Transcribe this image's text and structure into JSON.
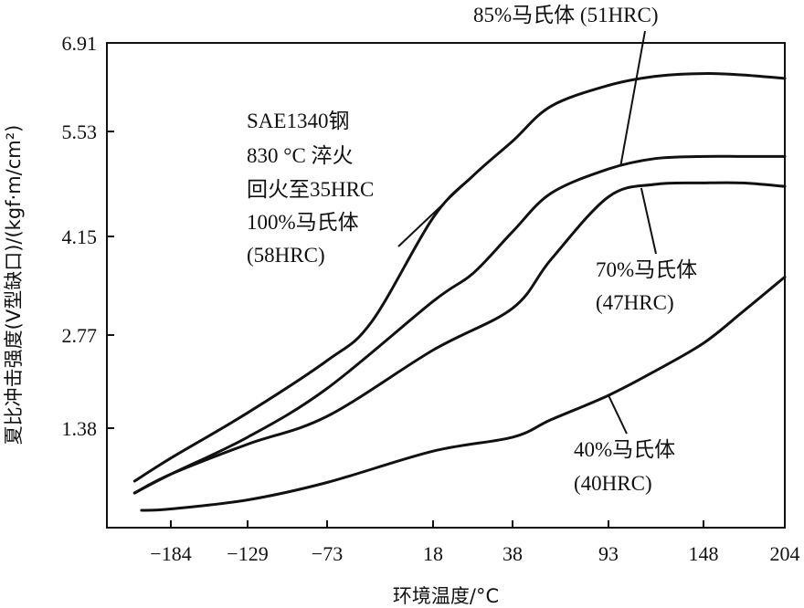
{
  "chart_data": {
    "type": "line",
    "xlabel": "环境温度/°C",
    "ylabel": "夏比冲击强度(V型缺口)/(kgf·m/cm²)",
    "x_ticks": [
      "−184",
      "−129",
      "−73",
      "18",
      "38",
      "93",
      "148",
      "204"
    ],
    "y_ticks": [
      "1.38",
      "2.77",
      "4.15",
      "5.53",
      "6.91"
    ],
    "x_tick_values": [
      -184,
      -129,
      -73,
      18,
      38,
      93,
      148,
      204
    ],
    "y_tick_values": [
      1.38,
      2.77,
      4.15,
      5.53,
      6.91
    ],
    "ylim": [
      -0.1,
      6.91
    ],
    "note": [
      "SAE1340钢",
      "830 °C 淬火",
      "回火至35HRC"
    ],
    "series": [
      {
        "name": "100%马氏体 (58HRC)",
        "label_lines": [
          "100%马氏体",
          "(58HRC)"
        ],
        "x": [
          -210,
          -184,
          -129,
          -73,
          -35,
          18,
          28,
          38,
          60,
          93,
          120,
          148,
          175,
          204
        ],
        "y": [
          0.62,
          0.95,
          1.6,
          2.35,
          2.9,
          4.4,
          5.0,
          5.5,
          6.0,
          6.3,
          6.43,
          6.47,
          6.45,
          6.4
        ]
      },
      {
        "name": "85%马氏体 (51HRC)",
        "label_lines": [
          "85%马氏体 (51HRC)"
        ],
        "x": [
          -210,
          -184,
          -129,
          -73,
          18,
          28,
          38,
          60,
          93,
          120,
          148,
          175,
          204
        ],
        "y": [
          0.45,
          0.72,
          1.25,
          1.95,
          3.2,
          3.6,
          4.2,
          4.75,
          5.1,
          5.25,
          5.28,
          5.28,
          5.28
        ]
      },
      {
        "name": "70%马氏体 (47HRC)",
        "label_lines": [
          "70%马氏体",
          "(47HRC)"
        ],
        "x": [
          -210,
          -184,
          -129,
          -73,
          18,
          38,
          60,
          93,
          120,
          148,
          175,
          204
        ],
        "y": [
          0.45,
          0.72,
          1.15,
          1.55,
          2.5,
          3.1,
          3.8,
          4.7,
          4.88,
          4.9,
          4.9,
          4.85
        ]
      },
      {
        "name": "40%马氏体 (40HRC)",
        "label_lines": [
          "40%马氏体",
          "(40HRC)"
        ],
        "x": [
          -205,
          -184,
          -129,
          -73,
          18,
          38,
          60,
          93,
          120,
          148,
          175,
          204
        ],
        "y": [
          0.2,
          0.22,
          0.35,
          0.6,
          1.05,
          1.25,
          1.5,
          1.85,
          2.2,
          2.6,
          3.05,
          3.55
        ]
      }
    ]
  }
}
